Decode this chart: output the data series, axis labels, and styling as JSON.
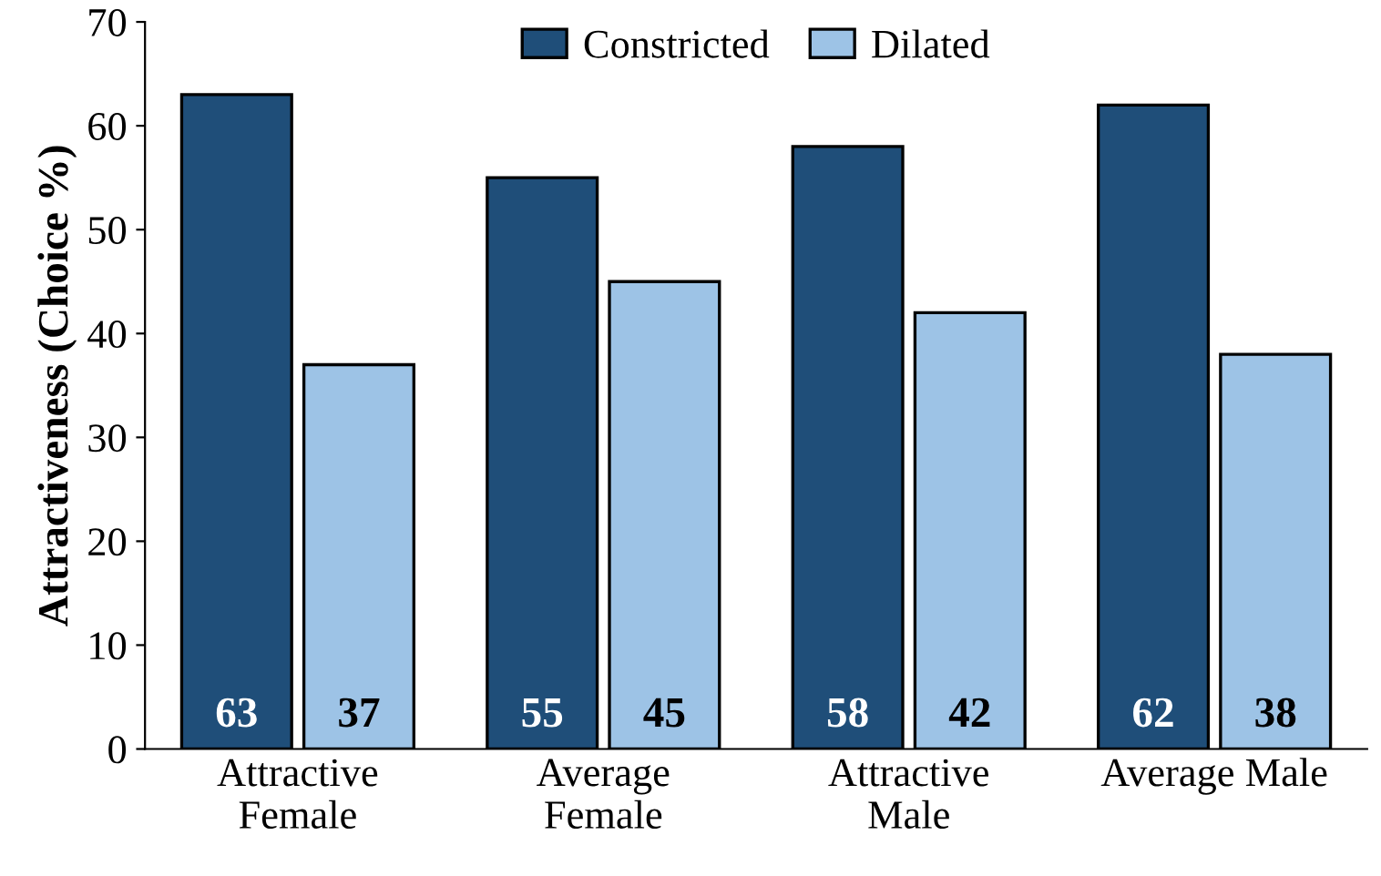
{
  "chart_data": {
    "type": "bar",
    "ylabel": "Attractiveness (Choice %)",
    "categories": [
      "Attractive\nFemale",
      "Average\nFemale",
      "Attractive\nMale",
      "Average Male"
    ],
    "series": [
      {
        "name": "Constricted",
        "color": "#1f4e79",
        "values": [
          63,
          55,
          58,
          62
        ]
      },
      {
        "name": "Dilated",
        "color": "#9dc3e6",
        "values": [
          37,
          45,
          42,
          38
        ]
      }
    ],
    "ylim": [
      0,
      70
    ],
    "yticks": [
      0,
      10,
      20,
      30,
      40,
      50,
      60,
      70
    ],
    "data_labels": true,
    "legend": "top",
    "grid": false
  }
}
